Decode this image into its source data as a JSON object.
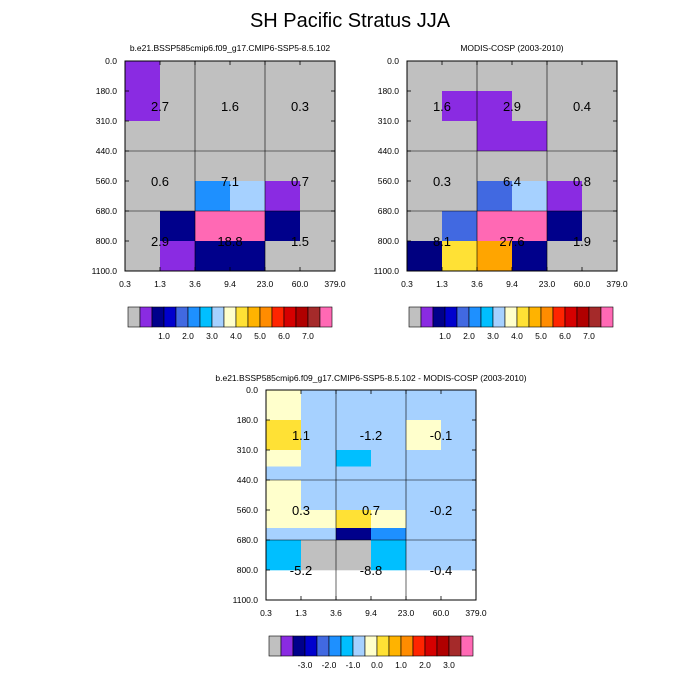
{
  "figure": {
    "title": "SH Pacific Stratus JJA"
  },
  "chart_data": [
    {
      "type": "heatmap",
      "id": "model",
      "title": "b.e21.BSSP585cmip6.f09_g17.CMIP6-SSP5-8.5.102",
      "x_ticks": [
        "0.3",
        "1.3",
        "3.6",
        "9.4",
        "23.0",
        "60.0",
        "379.0"
      ],
      "y_ticks": [
        "0.0",
        "180.0",
        "310.0",
        "440.0",
        "560.0",
        "680.0",
        "800.0",
        "1100.0"
      ],
      "cells": [
        [
          "c5",
          "c0",
          "c0",
          "c0",
          "c0",
          "c0"
        ],
        [
          "c5",
          "c0",
          "c0",
          "c0",
          "c0",
          "c0"
        ],
        [
          "c0",
          "c0",
          "c0",
          "c0",
          "c0",
          "c0"
        ],
        [
          "c0",
          "c0",
          "c0",
          "c0",
          "c0",
          "c0"
        ],
        [
          "c0",
          "c0",
          "c6",
          "c7",
          "c5",
          "c0"
        ],
        [
          "c0",
          "c2",
          "c9",
          "c9",
          "c2",
          "c0"
        ],
        [
          "c0",
          "c5",
          "c2",
          "c2",
          "c0",
          "c0"
        ]
      ],
      "block_labels": [
        [
          "2.7",
          "1.6",
          "0.3"
        ],
        [
          "0.6",
          "7.1",
          "0.7"
        ],
        [
          "2.9",
          "18.8",
          "1.5"
        ]
      ]
    },
    {
      "type": "heatmap",
      "id": "obs",
      "title": "MODIS-COSP (2003-2010)",
      "x_ticks": [
        "0.3",
        "1.3",
        "3.6",
        "9.4",
        "23.0",
        "60.0",
        "379.0"
      ],
      "y_ticks": [
        "0.0",
        "180.0",
        "310.0",
        "440.0",
        "560.0",
        "680.0",
        "800.0",
        "1100.0"
      ],
      "cells": [
        [
          "c0",
          "c0",
          "c0",
          "c0",
          "c0",
          "c0"
        ],
        [
          "c0",
          "c5",
          "c5",
          "c0",
          "c0",
          "c0"
        ],
        [
          "c0",
          "c0",
          "c5",
          "c5",
          "c0",
          "c0"
        ],
        [
          "c0",
          "c0",
          "c0",
          "c0",
          "c0",
          "c0"
        ],
        [
          "c0",
          "c0",
          "c4",
          "c7",
          "c5",
          "c0"
        ],
        [
          "c0",
          "c4",
          "c9",
          "c9",
          "c2",
          "c0"
        ],
        [
          "c3",
          "c8",
          "c10",
          "c2",
          "c0",
          "c0"
        ]
      ],
      "block_labels": [
        [
          "1.6",
          "2.9",
          "0.4"
        ],
        [
          "0.3",
          "6.4",
          "0.8"
        ],
        [
          "8.1",
          "27.6",
          "1.9"
        ]
      ]
    },
    {
      "type": "heatmap",
      "id": "diff",
      "title": "b.e21.BSSP585cmip6.f09_g17.CMIP6-SSP5-8.5.102 - MODIS-COSP (2003-2010)",
      "x_ticks": [
        "0.3",
        "1.3",
        "3.6",
        "9.4",
        "23.0",
        "60.0",
        "379.0"
      ],
      "y_ticks": [
        "0.0",
        "180.0",
        "310.0",
        "440.0",
        "560.0",
        "680.0",
        "800.0",
        "1100.0"
      ],
      "cells": [
        [
          "d8",
          "d7",
          "d7",
          "d7",
          "d7",
          "d7"
        ],
        [
          "d9",
          "d7",
          "d7",
          "d7",
          "d8",
          "d7"
        ],
        [
          "d8",
          "d7",
          "d5",
          "d7",
          "d7",
          "d7"
        ],
        [
          "d7",
          "d7",
          "d7",
          "d7",
          "d7",
          "d7"
        ],
        [
          "d8",
          "d7",
          "d7",
          "d7",
          "d7",
          "d7"
        ],
        [
          "d8",
          "d8",
          "d9",
          "d8",
          "d7",
          "d7"
        ],
        [
          "d7",
          "d7",
          "d2",
          "d4",
          "d7",
          "d7"
        ],
        [
          "d5",
          "d0",
          "d0",
          "d5",
          "d7",
          "d7"
        ]
      ],
      "row_edges": [
        0,
        1,
        2,
        2.55,
        3,
        4,
        4.6,
        5,
        6,
        7
      ],
      "row_map": [
        0,
        1,
        2,
        3,
        3,
        4,
        5,
        6,
        7
      ],
      "block_labels": [
        [
          "1.1",
          "-1.2",
          "-0.1"
        ],
        [
          "0.3",
          "0.7",
          "-0.2"
        ],
        [
          "-5.2",
          "-8.8",
          "-0.4"
        ]
      ]
    }
  ],
  "colorbars": {
    "top": {
      "labels": [
        "1.0",
        "2.0",
        "3.0",
        "4.0",
        "5.0",
        "6.0",
        "7.0"
      ],
      "colors": [
        "#c0c0c0",
        "#8a2be2",
        "#00008b",
        "#0000cd",
        "#4169e1",
        "#1e90ff",
        "#00bfff",
        "#a6d1ff",
        "#ffffcc",
        "#ffe135",
        "#ffb300",
        "#ff8c00",
        "#ff2400",
        "#d60000",
        "#b00000",
        "#a52a2a",
        "#ff69b4"
      ]
    },
    "bottom": {
      "labels": [
        "-3.0",
        "-2.0",
        "-1.0",
        "0.0",
        "1.0",
        "2.0",
        "3.0"
      ],
      "colors": [
        "#c0c0c0",
        "#8a2be2",
        "#00008b",
        "#0000cd",
        "#4169e1",
        "#1e90ff",
        "#00bfff",
        "#a6d1ff",
        "#ffffcc",
        "#ffe135",
        "#ffb300",
        "#ff8c00",
        "#ff2400",
        "#d60000",
        "#b00000",
        "#a52a2a",
        "#ff69b4"
      ]
    }
  },
  "palette": {
    "c0": "#c0c0c0",
    "c2": "#00008b",
    "c3": "#000080",
    "c4": "#4169e1",
    "c5": "#8a2be2",
    "c6": "#1e90ff",
    "c7": "#a6d1ff",
    "c8": "#ffe135",
    "c9": "#ff69b4",
    "c10": "#ffa500",
    "d0": "#c0c0c0",
    "d2": "#00008b",
    "d4": "#1e90ff",
    "d5": "#00bfff",
    "d7": "#a6d1ff",
    "d8": "#ffffcc",
    "d9": "#ffe135"
  }
}
